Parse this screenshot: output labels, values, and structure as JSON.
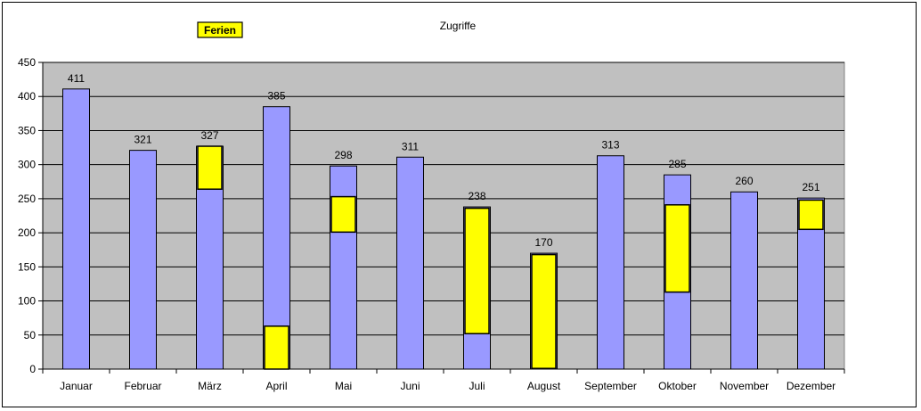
{
  "chart_data": {
    "type": "bar",
    "title": "Zugriffe",
    "categories": [
      "Januar",
      "Februar",
      "März",
      "April",
      "Mai",
      "Juni",
      "Juli",
      "August",
      "September",
      "Oktober",
      "November",
      "Dezember"
    ],
    "values": [
      411,
      321,
      327,
      385,
      298,
      311,
      238,
      170,
      313,
      285,
      260,
      251
    ],
    "highlight_series": {
      "name": "Ferien",
      "ranges": [
        null,
        null,
        [
          264,
          327
        ],
        [
          0,
          63
        ],
        [
          201,
          253
        ],
        null,
        [
          52,
          236
        ],
        [
          1,
          168
        ],
        null,
        [
          113,
          241
        ],
        null,
        [
          205,
          248
        ]
      ]
    },
    "ylim": [
      0,
      450
    ],
    "yticks": [
      0,
      50,
      100,
      150,
      200,
      250,
      300,
      350,
      400,
      450
    ],
    "grid": true,
    "legend_placement": "top-left",
    "colors": {
      "bar": "#9999ff",
      "highlight": "#ffff00",
      "plot_bg": "#c0c0c0",
      "grid": "#000000"
    }
  }
}
